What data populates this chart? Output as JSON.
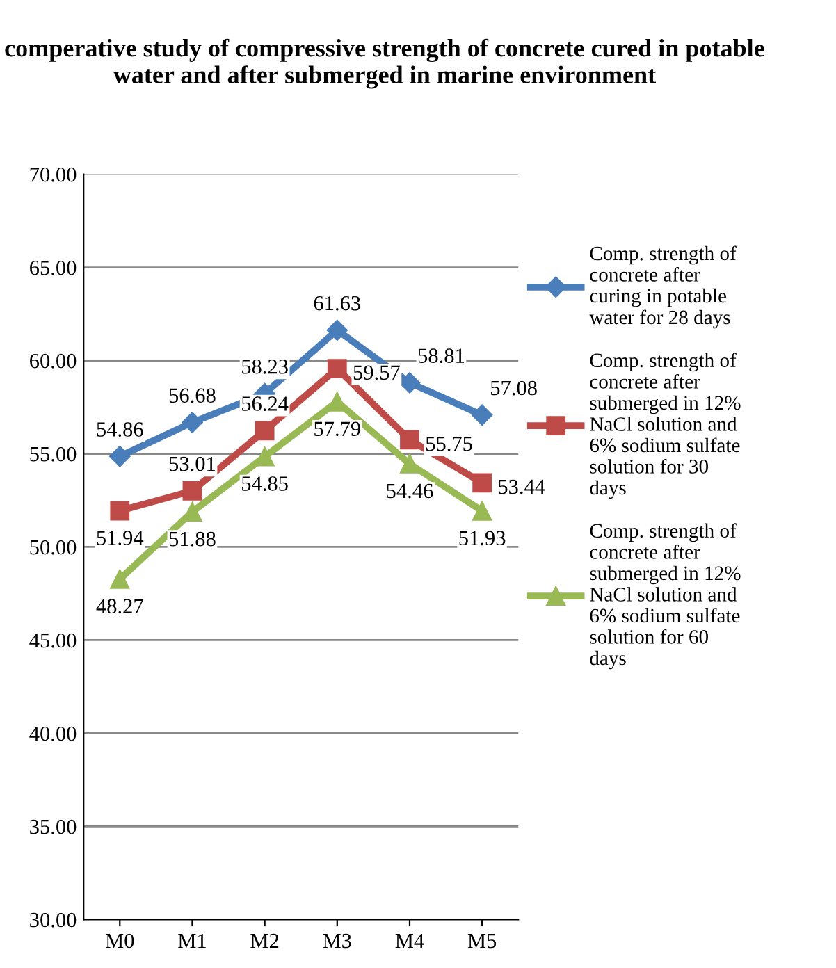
{
  "chart_data": {
    "type": "line",
    "title": "comperative study of compressive strength of concrete cured in potable water and after submerged in marine environment",
    "categories": [
      "M0",
      "M1",
      "M2",
      "M3",
      "M4",
      "M5"
    ],
    "series": [
      {
        "name": "Comp. strength of concrete after curing in potable water for 28 days",
        "color": "#4a7ebb",
        "marker": "diamond",
        "values": [
          54.86,
          56.68,
          58.23,
          61.63,
          58.81,
          57.08
        ]
      },
      {
        "name": "Comp. strength of concrete after submerged in 12% NaCl solution and 6% sodium sulfate solution for 30 days",
        "color": "#be4b48",
        "marker": "square",
        "values": [
          51.94,
          53.01,
          56.24,
          59.57,
          55.75,
          53.44
        ]
      },
      {
        "name": "Comp. strength of concrete after submerged in 12% NaCl solution and 6% sodium sulfate solution for 60 days",
        "color": "#98b954",
        "marker": "triangle",
        "values": [
          48.27,
          51.88,
          54.85,
          57.79,
          54.46,
          51.93
        ]
      }
    ],
    "ylim": [
      30,
      70
    ],
    "yticks": [
      {
        "value": 30,
        "label": "30.00"
      },
      {
        "value": 35,
        "label": "35.00"
      },
      {
        "value": 40,
        "label": "40.00"
      },
      {
        "value": 45,
        "label": "45.00"
      },
      {
        "value": 50,
        "label": "50.00"
      },
      {
        "value": 55,
        "label": "55.00"
      },
      {
        "value": 60,
        "label": "60.00"
      },
      {
        "value": 65,
        "label": "65.00"
      },
      {
        "value": 70,
        "label": "70.00"
      }
    ],
    "grid": "y",
    "legend": "right",
    "data_labels": true,
    "line_style": "solid"
  }
}
